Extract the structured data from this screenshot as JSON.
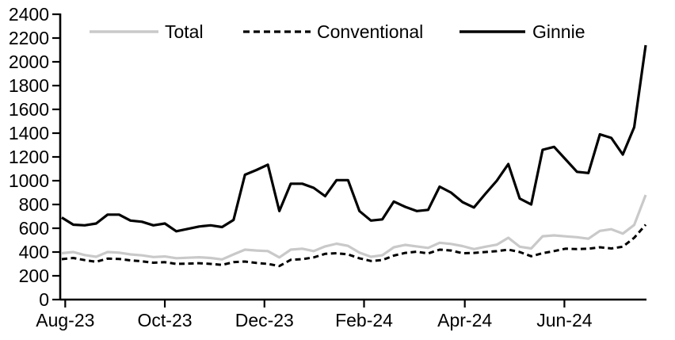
{
  "chart_data": {
    "type": "line",
    "title": "",
    "x_unit": "weekly observations",
    "x_axis": {
      "ticks": [
        {
          "label": "Aug-23",
          "week": 0.3
        },
        {
          "label": "Oct-23",
          "week": 9.0
        },
        {
          "label": "Dec-23",
          "week": 17.7
        },
        {
          "label": "Feb-24",
          "week": 26.4
        },
        {
          "label": "Apr-24",
          "week": 35.2
        },
        {
          "label": "Jun-24",
          "week": 43.9
        }
      ]
    },
    "y_axis": {
      "min": 0,
      "max": 2400,
      "step": 200,
      "tick_labels": [
        "0",
        "200",
        "400",
        "600",
        "800",
        "1000",
        "1200",
        "1400",
        "1600",
        "1800",
        "2000",
        "2200",
        "2400"
      ]
    },
    "legend": {
      "position": "top",
      "entries": [
        "Total",
        "Conventional",
        "Ginnie"
      ]
    },
    "series": [
      {
        "name": "Total",
        "color": "#c9c9c9",
        "dash": "none",
        "stroke_width": 3.2,
        "values": [
          390,
          400,
          375,
          360,
          400,
          395,
          380,
          372,
          358,
          363,
          348,
          352,
          356,
          350,
          338,
          380,
          420,
          413,
          408,
          355,
          420,
          428,
          408,
          447,
          470,
          452,
          395,
          360,
          373,
          440,
          460,
          447,
          435,
          478,
          468,
          450,
          425,
          445,
          462,
          520,
          445,
          430,
          533,
          540,
          532,
          525,
          512,
          578,
          592,
          555,
          628,
          880
        ]
      },
      {
        "name": "Conventional",
        "color": "#000000",
        "dash": "7 4.5",
        "stroke_width": 3.0,
        "values": [
          340,
          350,
          332,
          318,
          345,
          342,
          330,
          322,
          310,
          315,
          300,
          303,
          306,
          300,
          292,
          315,
          320,
          308,
          300,
          282,
          335,
          340,
          355,
          385,
          390,
          380,
          347,
          325,
          333,
          370,
          393,
          403,
          388,
          420,
          413,
          390,
          393,
          400,
          407,
          420,
          400,
          365,
          390,
          408,
          428,
          425,
          428,
          440,
          430,
          445,
          520,
          630
        ]
      },
      {
        "name": "Ginnie",
        "color": "#000000",
        "dash": "none",
        "stroke_width": 3.2,
        "values": [
          690,
          630,
          625,
          640,
          715,
          715,
          665,
          655,
          625,
          640,
          575,
          595,
          615,
          625,
          610,
          670,
          1050,
          1090,
          1135,
          745,
          975,
          975,
          940,
          870,
          1005,
          1005,
          745,
          665,
          675,
          825,
          780,
          745,
          755,
          950,
          900,
          820,
          775,
          890,
          1000,
          1140,
          850,
          800,
          1260,
          1285,
          1180,
          1075,
          1065,
          1390,
          1360,
          1220,
          1450,
          2140
        ]
      }
    ]
  }
}
